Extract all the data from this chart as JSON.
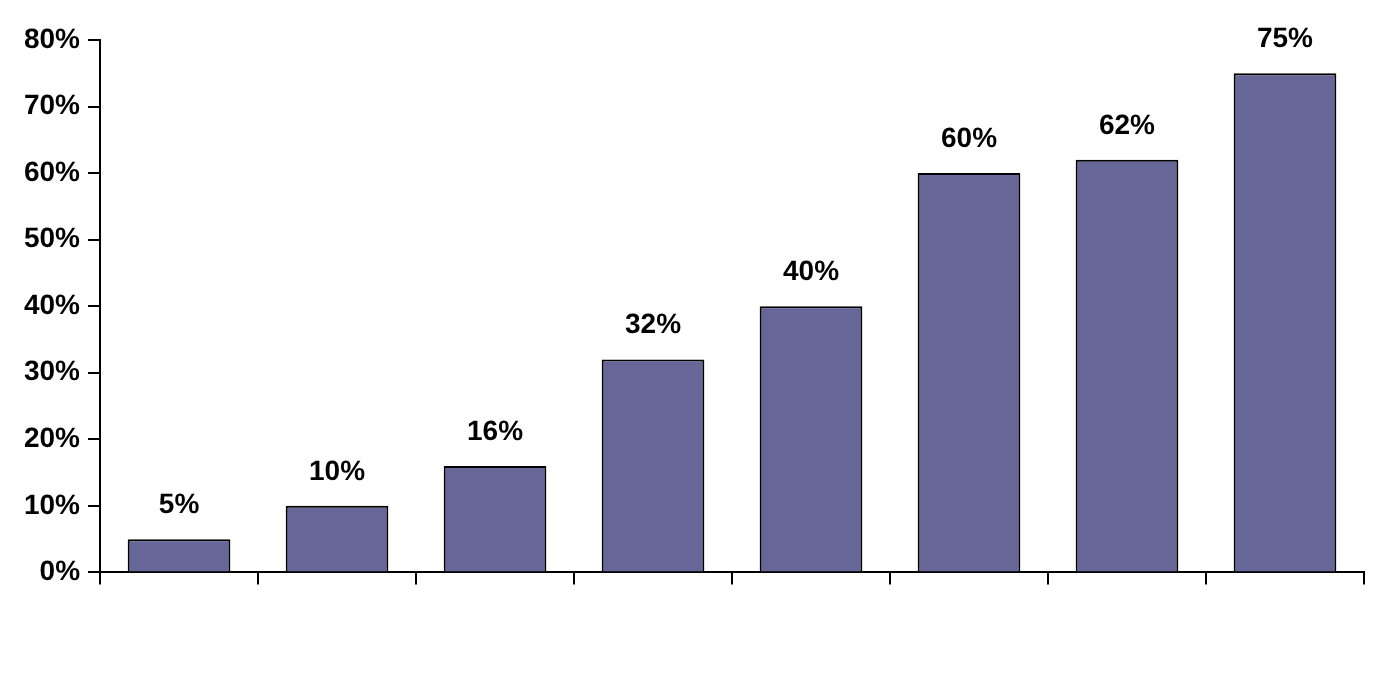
{
  "chart_data": {
    "type": "bar",
    "categories": [
      null,
      null,
      null,
      null,
      null,
      null,
      null,
      null
    ],
    "values": [
      5,
      10,
      16,
      32,
      40,
      60,
      62,
      75
    ],
    "value_labels": [
      "5%",
      "10%",
      "16%",
      "32%",
      "40%",
      "60%",
      "62%",
      "75%"
    ],
    "color": "#666699",
    "ylim": [
      0,
      80
    ],
    "yticks": [
      {
        "value": 0,
        "label": "0%"
      },
      {
        "value": 10,
        "label": "10%"
      },
      {
        "value": 20,
        "label": "20%"
      },
      {
        "value": 30,
        "label": "30%"
      },
      {
        "value": 40,
        "label": "40%"
      },
      {
        "value": 50,
        "label": "50%"
      },
      {
        "value": 60,
        "label": "60%"
      },
      {
        "value": 70,
        "label": "70%"
      },
      {
        "value": 80,
        "label": "80%"
      }
    ],
    "grid": false,
    "legend": false
  }
}
